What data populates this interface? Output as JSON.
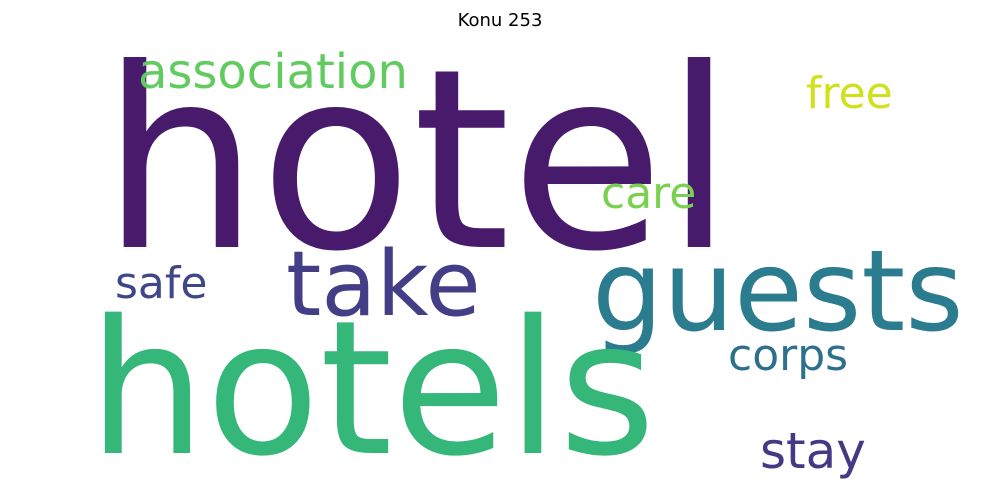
{
  "title": "Konu 253",
  "words": {
    "hotel": {
      "text": "hotel",
      "color": "#481a6c"
    },
    "hotels": {
      "text": "hotels",
      "color": "#35b779"
    },
    "guests": {
      "text": "guests",
      "color": "#2a7c8e"
    },
    "take": {
      "text": "take",
      "color": "#433e85"
    },
    "association": {
      "text": "association",
      "color": "#62cb5f"
    },
    "free": {
      "text": "free",
      "color": "#d0e11c"
    },
    "care": {
      "text": "care",
      "color": "#7ad151"
    },
    "safe": {
      "text": "safe",
      "color": "#3f4788"
    },
    "corps": {
      "text": "corps",
      "color": "#2d708e"
    },
    "stay": {
      "text": "stay",
      "color": "#443983"
    }
  }
}
